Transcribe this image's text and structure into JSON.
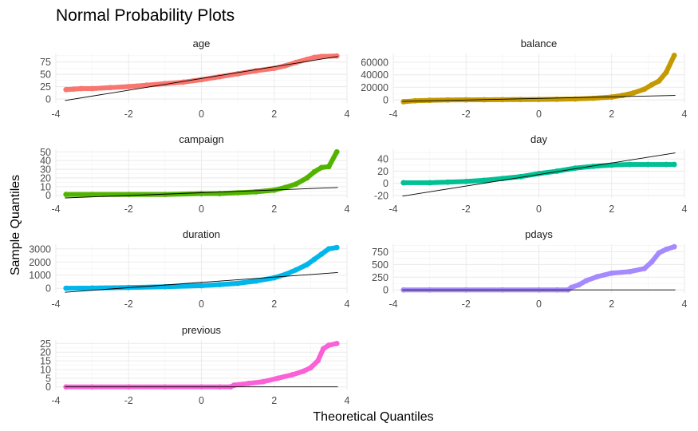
{
  "title": "Normal Probability Plots",
  "xlabel": "Theoretical Quantiles",
  "ylabel": "Sample Quantiles",
  "chart_data": [
    {
      "type": "scatter",
      "panel": "age",
      "color": "#F8766D",
      "xlim": [
        -4,
        4
      ],
      "xticks": [
        -4,
        -2,
        0,
        2,
        4
      ],
      "ylim": [
        -8,
        92
      ],
      "yticks": [
        0,
        25,
        50,
        75
      ],
      "ref_line": {
        "x": [
          -3.75,
          3.75
        ],
        "y": [
          -3,
          86
        ]
      },
      "points": [
        [
          -3.72,
          19
        ],
        [
          -3.5,
          20
        ],
        [
          -3.3,
          21
        ],
        [
          -3.0,
          21
        ],
        [
          -2.5,
          23
        ],
        [
          -2.0,
          25
        ],
        [
          -1.5,
          28
        ],
        [
          -1.0,
          31
        ],
        [
          -0.5,
          34
        ],
        [
          0,
          39
        ],
        [
          0.5,
          45
        ],
        [
          1.0,
          51
        ],
        [
          1.5,
          57
        ],
        [
          2.0,
          62
        ],
        [
          2.3,
          67
        ],
        [
          2.6,
          74
        ],
        [
          2.9,
          80
        ],
        [
          3.1,
          84
        ],
        [
          3.3,
          86
        ],
        [
          3.72,
          87
        ]
      ]
    },
    {
      "type": "scatter",
      "panel": "balance",
      "color": "#C49A00",
      "xlim": [
        -4,
        4
      ],
      "xticks": [
        -4,
        -2,
        0,
        2,
        4
      ],
      "ylim": [
        -5000,
        74000
      ],
      "yticks": [
        0,
        20000,
        40000,
        60000
      ],
      "ref_line": {
        "x": [
          -3.75,
          3.75
        ],
        "y": [
          -2500,
          7000
        ]
      },
      "points": [
        [
          -3.72,
          -3000
        ],
        [
          -3.4,
          -1500
        ],
        [
          -3.0,
          -800
        ],
        [
          -2.5,
          -200
        ],
        [
          -2.0,
          0
        ],
        [
          -1.5,
          100
        ],
        [
          -1.0,
          300
        ],
        [
          -0.5,
          450
        ],
        [
          0,
          600
        ],
        [
          0.5,
          900
        ],
        [
          1.0,
          1400
        ],
        [
          1.5,
          2500
        ],
        [
          2.0,
          4500
        ],
        [
          2.3,
          7000
        ],
        [
          2.6,
          11000
        ],
        [
          2.9,
          17000
        ],
        [
          3.1,
          24000
        ],
        [
          3.3,
          30000
        ],
        [
          3.5,
          44000
        ],
        [
          3.72,
          71000
        ]
      ]
    },
    {
      "type": "scatter",
      "panel": "campaign",
      "color": "#53B400",
      "xlim": [
        -4,
        4
      ],
      "xticks": [
        -4,
        -2,
        0,
        2,
        4
      ],
      "ylim": [
        -3,
        53
      ],
      "yticks": [
        0,
        10,
        20,
        30,
        40,
        50
      ],
      "ref_line": {
        "x": [
          -3.75,
          3.75
        ],
        "y": [
          -3,
          9
        ]
      },
      "points": [
        [
          -3.72,
          1
        ],
        [
          -3.0,
          1
        ],
        [
          -2.0,
          1
        ],
        [
          -1.0,
          1
        ],
        [
          0,
          2
        ],
        [
          0.5,
          2
        ],
        [
          1.0,
          3
        ],
        [
          1.5,
          4
        ],
        [
          2.0,
          6
        ],
        [
          2.3,
          9
        ],
        [
          2.6,
          13
        ],
        [
          2.9,
          20
        ],
        [
          3.1,
          27
        ],
        [
          3.3,
          32
        ],
        [
          3.5,
          33
        ],
        [
          3.72,
          50
        ]
      ]
    },
    {
      "type": "scatter",
      "panel": "day",
      "color": "#00C094",
      "xlim": [
        -4,
        4
      ],
      "xticks": [
        -4,
        -2,
        0,
        2,
        4
      ],
      "ylim": [
        -24,
        56
      ],
      "yticks": [
        -20,
        0,
        20,
        40
      ],
      "ref_line": {
        "x": [
          -3.75,
          3.75
        ],
        "y": [
          -21,
          50
        ]
      },
      "points": [
        [
          -3.72,
          1
        ],
        [
          -3.0,
          1
        ],
        [
          -2.5,
          2
        ],
        [
          -2.0,
          3
        ],
        [
          -1.5,
          5
        ],
        [
          -1.0,
          8
        ],
        [
          -0.5,
          11
        ],
        [
          0,
          16
        ],
        [
          0.5,
          20
        ],
        [
          1.0,
          25
        ],
        [
          1.5,
          28
        ],
        [
          2.0,
          30
        ],
        [
          2.5,
          31
        ],
        [
          3.0,
          31
        ],
        [
          3.5,
          31
        ],
        [
          3.72,
          31
        ]
      ]
    },
    {
      "type": "scatter",
      "panel": "duration",
      "color": "#00B6EB",
      "xlim": [
        -4,
        4
      ],
      "xticks": [
        -4,
        -2,
        0,
        2,
        4
      ],
      "ylim": [
        -350,
        3350
      ],
      "yticks": [
        0,
        1000,
        2000,
        3000
      ],
      "ref_line": {
        "x": [
          -3.75,
          3.75
        ],
        "y": [
          -300,
          1200
        ]
      },
      "points": [
        [
          -3.72,
          5
        ],
        [
          -3.0,
          20
        ],
        [
          -2.0,
          60
        ],
        [
          -1.0,
          120
        ],
        [
          0,
          200
        ],
        [
          0.5,
          280
        ],
        [
          1.0,
          380
        ],
        [
          1.5,
          550
        ],
        [
          2.0,
          800
        ],
        [
          2.3,
          1050
        ],
        [
          2.6,
          1400
        ],
        [
          2.9,
          1800
        ],
        [
          3.1,
          2200
        ],
        [
          3.3,
          2600
        ],
        [
          3.5,
          3000
        ],
        [
          3.72,
          3100
        ]
      ]
    },
    {
      "type": "scatter",
      "panel": "pdays",
      "color": "#A58AFF",
      "xlim": [
        -4,
        4
      ],
      "xticks": [
        -4,
        -2,
        0,
        2,
        4
      ],
      "ylim": [
        -60,
        900
      ],
      "yticks": [
        0,
        250,
        500,
        750
      ],
      "ref_line": {
        "x": [
          -3.75,
          3.75
        ],
        "y": [
          0,
          0
        ]
      },
      "points": [
        [
          -3.72,
          -1
        ],
        [
          -3.0,
          -1
        ],
        [
          -2.0,
          -1
        ],
        [
          -1.0,
          -1
        ],
        [
          0,
          -1
        ],
        [
          0.5,
          -1
        ],
        [
          0.8,
          -1
        ],
        [
          0.9,
          50
        ],
        [
          1.1,
          100
        ],
        [
          1.3,
          180
        ],
        [
          1.6,
          260
        ],
        [
          2.0,
          330
        ],
        [
          2.5,
          360
        ],
        [
          2.9,
          420
        ],
        [
          3.1,
          550
        ],
        [
          3.3,
          730
        ],
        [
          3.5,
          800
        ],
        [
          3.72,
          850
        ]
      ]
    },
    {
      "type": "scatter",
      "panel": "previous",
      "color": "#FB61D7",
      "xlim": [
        -4,
        4
      ],
      "xticks": [
        -4,
        -2,
        0,
        2,
        4
      ],
      "ylim": [
        -1.5,
        27
      ],
      "yticks": [
        0,
        5,
        10,
        15,
        20,
        25
      ],
      "ref_line": {
        "x": [
          -3.75,
          3.75
        ],
        "y": [
          0,
          0
        ]
      },
      "points": [
        [
          -3.72,
          0
        ],
        [
          -3.0,
          0
        ],
        [
          -2.0,
          0
        ],
        [
          -1.0,
          0
        ],
        [
          0,
          0
        ],
        [
          0.5,
          0
        ],
        [
          0.8,
          0
        ],
        [
          0.9,
          1
        ],
        [
          1.3,
          2
        ],
        [
          1.7,
          3
        ],
        [
          2.1,
          5
        ],
        [
          2.5,
          7
        ],
        [
          2.8,
          9
        ],
        [
          3.0,
          11
        ],
        [
          3.2,
          15
        ],
        [
          3.35,
          22
        ],
        [
          3.5,
          24
        ],
        [
          3.72,
          25
        ]
      ]
    }
  ]
}
